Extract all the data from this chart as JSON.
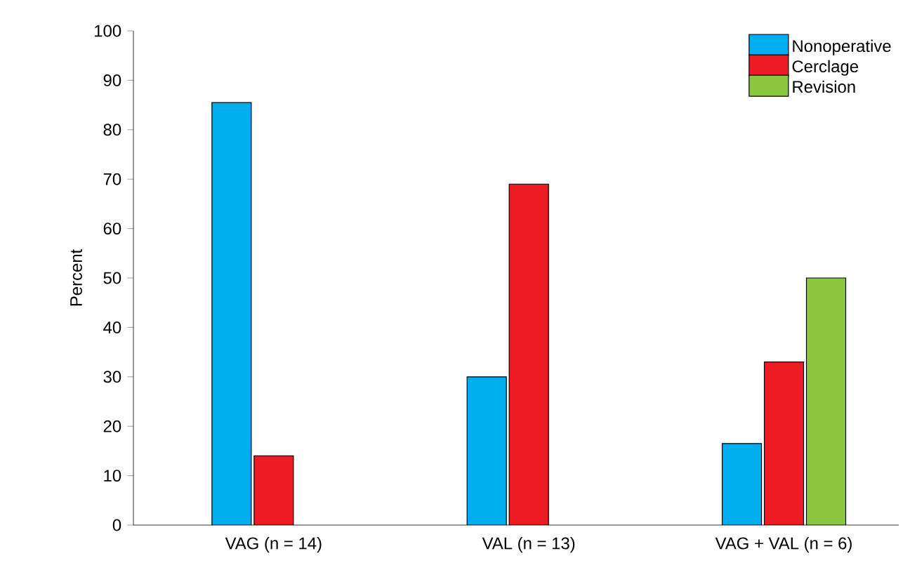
{
  "chart_data": {
    "type": "bar",
    "ylabel": "Percent",
    "categories": [
      "VAG (n = 14)",
      "VAL (n = 13)",
      "VAG + VAL (n = 6)"
    ],
    "series": [
      {
        "name": "Nonoperative",
        "color": "#00aeef",
        "values": [
          85.5,
          30,
          16.5
        ]
      },
      {
        "name": "Cerclage",
        "color": "#ed1c24",
        "values": [
          14,
          69,
          33
        ]
      },
      {
        "name": "Revision",
        "color": "#8dc63f",
        "values": [
          null,
          null,
          50
        ]
      }
    ],
    "ylim": [
      0,
      100
    ],
    "yticks": [
      0,
      10,
      20,
      30,
      40,
      50,
      60,
      70,
      80,
      90,
      100
    ],
    "legend": "top right"
  }
}
